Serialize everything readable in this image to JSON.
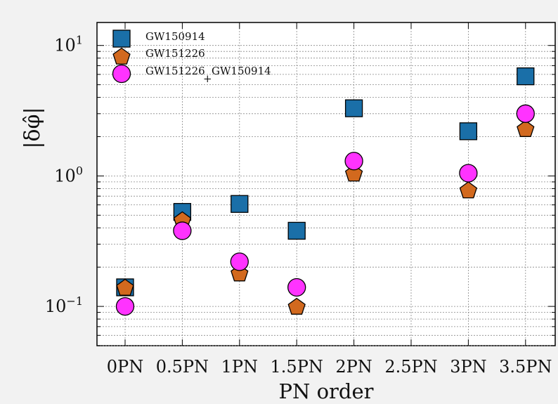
{
  "chart_data": {
    "type": "scatter",
    "xlabel": "PN order",
    "ylabel": "|δφ̂|",
    "categories": [
      "0PN",
      "0.5PN",
      "1PN",
      "1.5PN",
      "2PN",
      "2.5PN",
      "3PN",
      "3.5PN"
    ],
    "yscale": "log",
    "ylim": [
      0.05,
      15
    ],
    "ytick_labels": [
      {
        "base": "10",
        "exp": "−1",
        "value": 0.1
      },
      {
        "base": "10",
        "exp": "0",
        "value": 1
      },
      {
        "base": "10",
        "exp": "1",
        "value": 10
      }
    ],
    "grid": true,
    "legend_position": "top-left",
    "series": [
      {
        "name": "GW150914",
        "marker": "square",
        "color": "#1a6fa8",
        "values": [
          0.14,
          0.53,
          0.61,
          0.38,
          3.3,
          null,
          2.2,
          5.8
        ]
      },
      {
        "name": "GW151226",
        "marker": "pentagon",
        "color": "#d2691e",
        "values": [
          0.14,
          0.46,
          0.18,
          0.1,
          1.05,
          null,
          0.78,
          2.3
        ]
      },
      {
        "name": "GW151226 + GW150914",
        "marker": "circle",
        "color": "#ff33ff",
        "values": [
          0.1,
          0.38,
          0.22,
          0.14,
          1.3,
          null,
          1.05,
          3.0
        ]
      }
    ]
  },
  "legend": {
    "entries": [
      "GW150914",
      "GW151226",
      "GW151226",
      "+",
      "GW150914"
    ]
  }
}
